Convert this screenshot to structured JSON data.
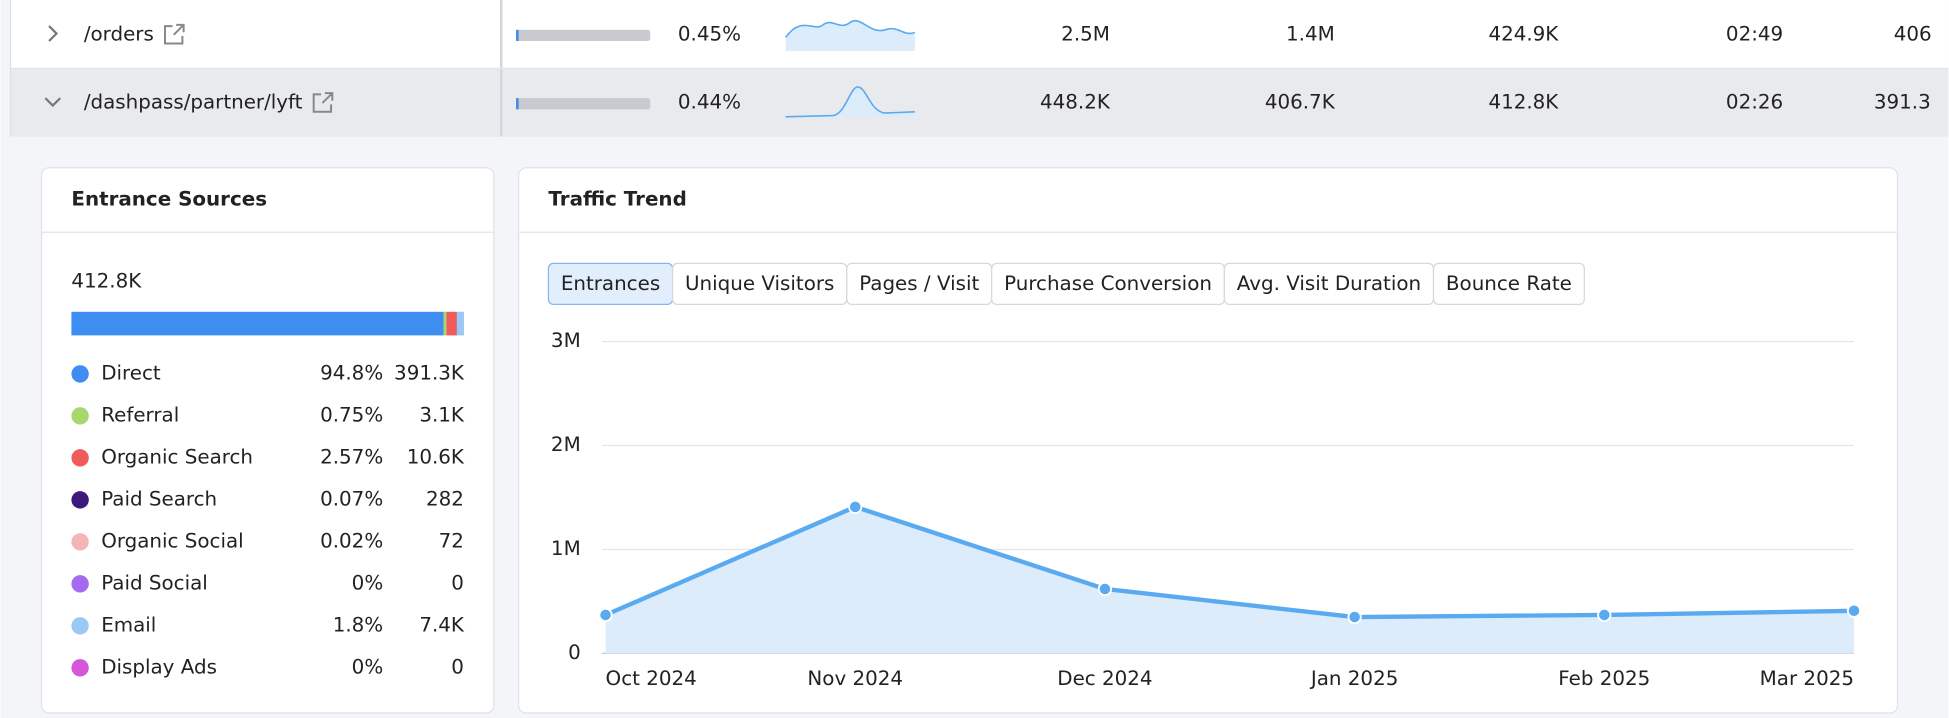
{
  "table": {
    "rows": [
      {
        "path": "/orders",
        "share": "0.45%",
        "cells": [
          "2.5M",
          "1.4M",
          "424.9K",
          "02:49",
          "406"
        ]
      },
      {
        "path": "/dashpass/partner/lyft",
        "share": "0.44%",
        "cells": [
          "448.2K",
          "406.7K",
          "412.8K",
          "02:26",
          "391.3"
        ]
      }
    ]
  },
  "chart_data": [
    {
      "type": "stacked_bar",
      "title": "Entrance Sources",
      "total": "412.8K",
      "categories": [
        "Direct",
        "Referral",
        "Organic Search",
        "Paid Search",
        "Organic Social",
        "Paid Social",
        "Email",
        "Display Ads"
      ],
      "values": [
        94.8,
        0.75,
        2.57,
        0.07,
        0.02,
        0,
        1.8,
        0
      ],
      "value_labels": [
        "94.8%",
        "0.75%",
        "2.57%",
        "0.07%",
        "0.02%",
        "0%",
        "1.8%",
        "0%"
      ],
      "counts": [
        "391.3K",
        "3.1K",
        "10.6K",
        "282",
        "72",
        "0",
        "7.4K",
        "0"
      ],
      "colors": [
        "#3d8ef0",
        "#a6d86e",
        "#ef5a5a",
        "#3a1a7a",
        "#f5b5b5",
        "#a46af0",
        "#9cc8f5",
        "#d655d8"
      ]
    },
    {
      "type": "line",
      "title": "Traffic Trend",
      "tabs": [
        "Entrances",
        "Unique Visitors",
        "Pages / Visit",
        "Purchase Conversion",
        "Avg. Visit Duration",
        "Bounce Rate"
      ],
      "categories": [
        "Oct 2024",
        "Nov 2024",
        "Dec 2024",
        "Jan 2025",
        "Feb 2025",
        "Mar 2025"
      ],
      "values": [
        370000,
        1410000,
        620000,
        350000,
        370000,
        410000
      ],
      "color": "#5aaaf0",
      "ylim": [
        0,
        3000000
      ],
      "yticks": [
        0,
        {
          "value": 1000000,
          "label": "1M"
        },
        {
          "value": 2000000,
          "label": "2M"
        },
        {
          "value": 3000000,
          "label": "3M"
        }
      ],
      "grid": true
    }
  ]
}
